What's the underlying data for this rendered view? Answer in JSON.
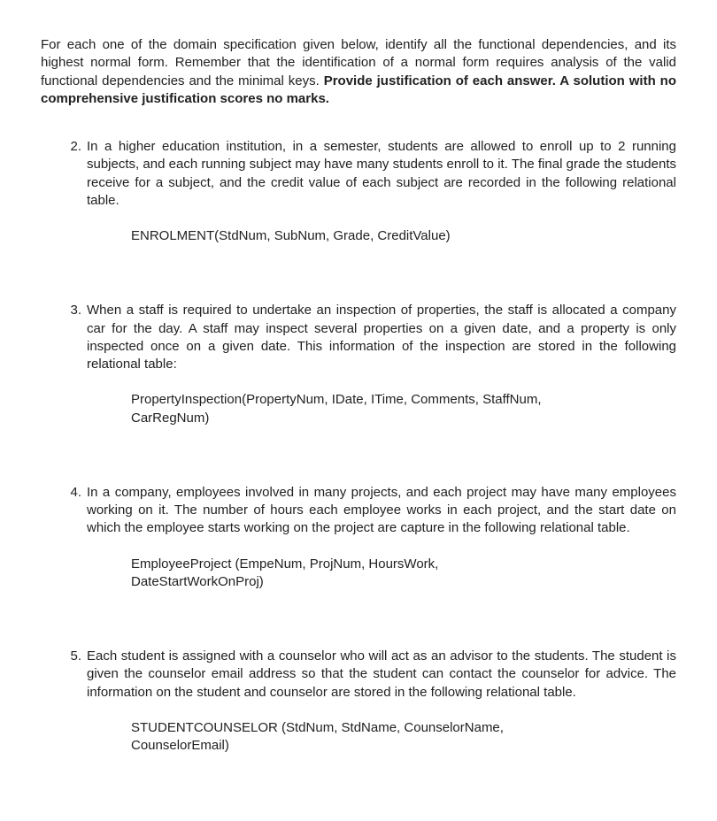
{
  "intro": {
    "plain": "For each one of the domain specification given below, identify all the functional dependencies, and its highest normal form. Remember that the identification of a normal form requires analysis of the valid functional dependencies and the minimal keys. ",
    "bold": "Provide justification of each answer. A solution with no comprehensive justification scores no marks."
  },
  "questions": [
    {
      "num": "2.",
      "desc": "In a higher education institution, in a semester, students are allowed to enroll up to 2 running subjects, and each running subject may have many students enroll to it. The final grade the students receive for a subject, and the credit value of each subject are recorded in the following relational table.",
      "schema_lines": [
        "ENROLMENT(StdNum, SubNum, Grade, CreditValue)"
      ]
    },
    {
      "num": "3.",
      "desc": "When a staff is required to undertake an inspection of properties, the staff is allocated a company car for the day. A staff may inspect several properties on a given date, and a property is only inspected once on a given date. This information of the inspection are stored in the following relational table:",
      "schema_lines": [
        "PropertyInspection(PropertyNum, IDate, ITime, Comments, StaffNum,",
        "CarRegNum)"
      ]
    },
    {
      "num": "4.",
      "desc": "In a company, employees involved in many projects, and each project may have many employees working on it. The number of hours each employee works in each project, and the start date on which the employee starts working on the project are capture in the following relational table.",
      "schema_lines": [
        "EmployeeProject (EmpeNum, ProjNum, HoursWork,",
        "DateStartWorkOnProj)"
      ]
    },
    {
      "num": "5.",
      "desc": "Each student is assigned with a counselor who will act as an advisor to the students. The student is given the counselor email address so that the student can contact the counselor for advice. The information on the student and counselor are stored in the following relational table.",
      "schema_lines": [
        "STUDENTCOUNSELOR (StdNum, StdName, CounselorName,",
        "CounselorEmail)"
      ]
    }
  ]
}
